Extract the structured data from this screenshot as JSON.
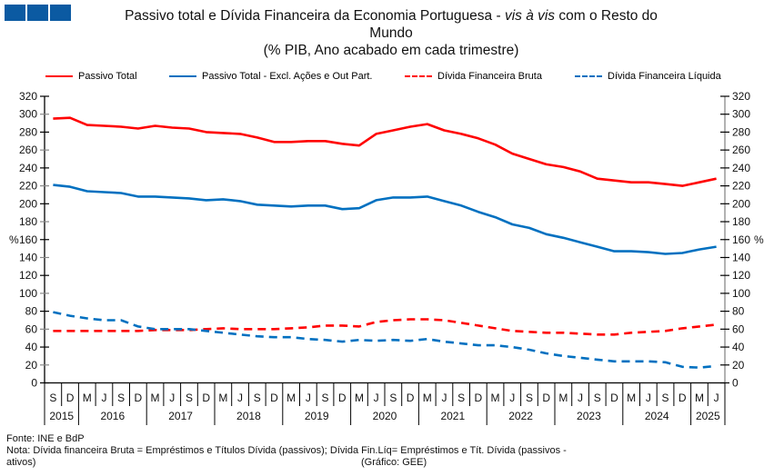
{
  "header": {
    "title_line1_a": "Passivo total e Dívida Financeira da Economia Portuguesa - ",
    "title_line1_italic": "vis à vis",
    "title_line1_b": " com o Resto do",
    "title_line2": "Mundo",
    "title_line3": "(% PIB, Ano acabado em cada trimestre)"
  },
  "colors": {
    "red": "#ff0000",
    "blue": "#0070c0",
    "logo": "#0b5aa2"
  },
  "footer": {
    "source": "Fonte: INE e BdP",
    "note_line1": "Nota: Dívida financeira Bruta = Empréstimos e Títulos Dívida (passivos); Dívida Fin.Líq= Empréstimos e Tít. Dívida (passivos -",
    "note_line2": "ativos)",
    "credit": "(Gráfico: GEE)"
  },
  "chart_data": {
    "type": "line",
    "title": "Passivo total e Dívida Financeira da Economia Portuguesa - vis à vis com o Resto do Mundo (% PIB, Ano acabado em cada trimestre)",
    "ylabel_left": "%",
    "ylabel_right": "%",
    "ylim": [
      0,
      320
    ],
    "ytick_step": 20,
    "yticks": [
      "0",
      "20",
      "40",
      "60",
      "80",
      "100",
      "120",
      "140",
      "160",
      "180",
      "200",
      "220",
      "240",
      "260",
      "280",
      "300",
      "320"
    ],
    "legend_position": "top",
    "quarters": [
      "S",
      "D",
      "M",
      "J",
      "S",
      "D",
      "M",
      "J",
      "S",
      "D",
      "M",
      "J",
      "S",
      "D",
      "M",
      "J",
      "S",
      "D",
      "M",
      "J",
      "S",
      "D",
      "M",
      "J",
      "S",
      "D",
      "M",
      "J",
      "S",
      "D",
      "M",
      "J",
      "S",
      "D",
      "M",
      "J",
      "S",
      "D",
      "M",
      "J"
    ],
    "years": [
      {
        "label": "2015",
        "count": 2
      },
      {
        "label": "2016",
        "count": 4
      },
      {
        "label": "2017",
        "count": 4
      },
      {
        "label": "2018",
        "count": 4
      },
      {
        "label": "2019",
        "count": 4
      },
      {
        "label": "2020",
        "count": 4
      },
      {
        "label": "2021",
        "count": 4
      },
      {
        "label": "2022",
        "count": 4
      },
      {
        "label": "2023",
        "count": 4
      },
      {
        "label": "2024",
        "count": 4
      },
      {
        "label": "2025",
        "count": 2
      }
    ],
    "series": [
      {
        "name": "Passivo Total",
        "color": "#ff0000",
        "dash": false,
        "values": [
          295,
          296,
          288,
          287,
          286,
          284,
          287,
          285,
          284,
          280,
          279,
          278,
          274,
          269,
          269,
          270,
          270,
          267,
          265,
          278,
          282,
          286,
          289,
          282,
          278,
          273,
          266,
          256,
          250,
          244,
          241,
          236,
          228,
          226,
          224,
          224,
          222,
          220,
          224,
          228
        ]
      },
      {
        "name": "Passivo Total - Excl. Ações e Out Part.",
        "color": "#0070c0",
        "dash": false,
        "values": [
          221,
          219,
          214,
          213,
          212,
          208,
          208,
          207,
          206,
          204,
          205,
          203,
          199,
          198,
          197,
          198,
          198,
          194,
          195,
          204,
          207,
          207,
          208,
          203,
          198,
          191,
          185,
          177,
          173,
          166,
          162,
          157,
          152,
          147,
          147,
          146,
          144,
          145,
          149,
          152
        ]
      },
      {
        "name": "Dívida Financeira Bruta",
        "color": "#ff0000",
        "dash": true,
        "values": [
          58,
          58,
          58,
          58,
          58,
          58,
          59,
          59,
          59,
          60,
          61,
          60,
          60,
          60,
          61,
          62,
          64,
          64,
          63,
          68,
          70,
          71,
          71,
          70,
          67,
          64,
          61,
          58,
          57,
          56,
          56,
          55,
          54,
          54,
          56,
          57,
          58,
          61,
          63,
          65
        ]
      },
      {
        "name": "Dívida Financeira Líquida",
        "color": "#0070c0",
        "dash": true,
        "values": [
          79,
          75,
          72,
          70,
          70,
          63,
          60,
          60,
          60,
          58,
          56,
          54,
          52,
          51,
          51,
          49,
          48,
          46,
          48,
          47,
          48,
          47,
          49,
          46,
          44,
          42,
          42,
          40,
          37,
          33,
          30,
          28,
          26,
          24,
          24,
          24,
          23,
          18,
          17,
          19
        ]
      }
    ]
  }
}
